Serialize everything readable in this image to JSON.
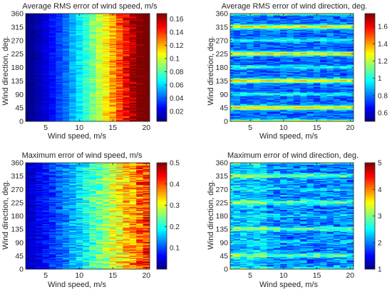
{
  "figure": {
    "layout": "2x2 grid of heatmaps",
    "colormap": "jet",
    "colormap_stops": [
      "#00007f",
      "#0000ff",
      "#007fff",
      "#00ffff",
      "#7fff7f",
      "#ffff00",
      "#ff7f00",
      "#ff0000",
      "#7f0000"
    ]
  },
  "chart_data": [
    {
      "type": "heatmap",
      "title": "Average RMS error of wind speed, m/s",
      "xlabel": "Wind speed, m/s",
      "ylabel": "Wind direction, deg.",
      "xlim": [
        2,
        20.5
      ],
      "ylim": [
        0,
        360
      ],
      "xticks": [
        5,
        10,
        15,
        20
      ],
      "yticks": [
        0,
        45,
        90,
        135,
        180,
        225,
        270,
        315,
        360
      ],
      "colorbar": {
        "min": 0.005,
        "max": 0.168,
        "ticks": [
          0.02,
          0.04,
          0.06,
          0.08,
          0.1,
          0.12,
          0.14,
          0.16
        ]
      },
      "pattern": "Error increases with wind speed: about 0.01 at 2 m/s, about 0.05 near 10 m/s, about 0.09-0.12 at 15-20 m/s, peaking near 0.16 close to 18-20 m/s; weak dependence on direction",
      "grid": {
        "x_start": 2,
        "x_step": 1,
        "x_count": 19,
        "y_step": 3,
        "y_count": 120
      }
    },
    {
      "type": "heatmap",
      "title": "Average RMS error of wind direction, deg.",
      "xlabel": "Wind speed, m/s",
      "ylabel": "Wind direction, deg.",
      "xlim": [
        2,
        20.5
      ],
      "ylim": [
        0,
        360
      ],
      "xticks": [
        5,
        10,
        15,
        20
      ],
      "yticks": [
        0,
        45,
        90,
        135,
        180,
        225,
        270,
        315,
        360
      ],
      "colorbar": {
        "min": 0.5,
        "max": 1.75,
        "ticks": [
          0.6,
          0.8,
          1,
          1.2,
          1.4,
          1.6
        ]
      },
      "pattern": "Roughly uniform background around 0.75-0.9 with horizontal high-error bands (up to about 1.6) near 45, 135, 225 and 315 deg and weaker bands near 0, 90, 180, 270 deg",
      "grid": {
        "x_start": 2,
        "x_step": 1,
        "x_count": 19,
        "y_step": 3,
        "y_count": 120
      }
    },
    {
      "type": "heatmap",
      "title": "Maximum error of wind speed, m/s",
      "xlabel": "Wind speed, m/s",
      "ylabel": "Wind direction, deg.",
      "xlim": [
        2,
        20.5
      ],
      "ylim": [
        0,
        360
      ],
      "xticks": [
        5,
        10,
        15,
        20
      ],
      "yticks": [
        0,
        45,
        90,
        135,
        180,
        225,
        270,
        315,
        360
      ],
      "colorbar": {
        "min": 0,
        "max": 0.5,
        "ticks": [
          0.1,
          0.2,
          0.3,
          0.4,
          0.5
        ]
      },
      "pattern": "Error increases with wind speed from about 0.03 at 2 m/s to about 0.3-0.45 at 18-20 m/s with noisy horizontal striping",
      "grid": {
        "x_start": 2,
        "x_step": 1,
        "x_count": 19,
        "y_step": 3,
        "y_count": 120
      }
    },
    {
      "type": "heatmap",
      "title": "Maximum error of wind direction, deg.",
      "xlabel": "Wind speed, m/s",
      "ylabel": "Wind direction, deg.",
      "xlim": [
        2,
        20.5
      ],
      "ylim": [
        0,
        360
      ],
      "xticks": [
        5,
        10,
        15,
        20
      ],
      "yticks": [
        0,
        45,
        90,
        135,
        180,
        225,
        270,
        315,
        360
      ],
      "colorbar": {
        "min": 1,
        "max": 5,
        "ticks": [
          1,
          2,
          3,
          4,
          5
        ]
      },
      "pattern": "Mostly about 2-2.5 with bands up to about 3.5-4 near 45, 135, 225 and 315 deg and at low wind speeds",
      "grid": {
        "x_start": 2,
        "x_step": 1,
        "x_count": 19,
        "y_step": 3,
        "y_count": 120
      }
    }
  ]
}
